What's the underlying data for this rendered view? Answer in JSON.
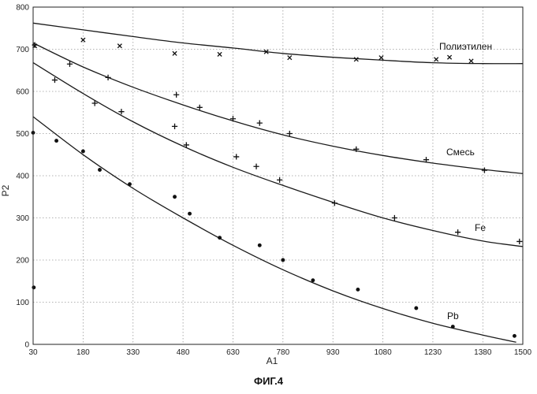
{
  "caption": "ФИГ.4",
  "chart_data": {
    "type": "scatter",
    "xlabel": "A1",
    "ylabel": "P2",
    "xlim": [
      30,
      1500
    ],
    "ylim": [
      0,
      800
    ],
    "xticks": [
      30,
      180,
      330,
      480,
      630,
      780,
      930,
      1080,
      1230,
      1380,
      1500
    ],
    "yticks": [
      0,
      100,
      200,
      300,
      400,
      500,
      600,
      700,
      800
    ],
    "xtick_labels": [
      "30",
      "180",
      "330",
      "480",
      "630",
      "780",
      "930",
      "1080",
      "1230",
      "1380",
      "1500"
    ],
    "ytick_labels": [
      "0",
      "100",
      "200",
      "300",
      "400",
      "500",
      "600",
      "700",
      "800"
    ],
    "grid": true,
    "series": [
      {
        "name": "Полиэтилен",
        "marker": "x",
        "fit": [
          [
            30,
            762
          ],
          [
            180,
            746
          ],
          [
            330,
            730
          ],
          [
            480,
            715
          ],
          [
            630,
            703
          ],
          [
            780,
            690
          ],
          [
            930,
            681
          ],
          [
            1080,
            674
          ],
          [
            1230,
            668
          ],
          [
            1380,
            666
          ],
          [
            1500,
            666
          ]
        ],
        "points": [
          [
            35,
            708
          ],
          [
            180,
            722
          ],
          [
            290,
            708
          ],
          [
            455,
            690
          ],
          [
            590,
            688
          ],
          [
            730,
            694
          ],
          [
            800,
            680
          ],
          [
            1000,
            676
          ],
          [
            1075,
            680
          ],
          [
            1240,
            676
          ],
          [
            1280,
            681
          ],
          [
            1345,
            672
          ]
        ]
      },
      {
        "name": "Смесь",
        "marker": "+",
        "fit": [
          [
            30,
            715
          ],
          [
            180,
            658
          ],
          [
            330,
            610
          ],
          [
            480,
            568
          ],
          [
            630,
            530
          ],
          [
            780,
            497
          ],
          [
            930,
            470
          ],
          [
            1080,
            448
          ],
          [
            1230,
            430
          ],
          [
            1380,
            415
          ],
          [
            1500,
            405
          ]
        ],
        "points": [
          [
            35,
            710
          ],
          [
            140,
            665
          ],
          [
            255,
            633
          ],
          [
            460,
            592
          ],
          [
            530,
            562
          ],
          [
            630,
            535
          ],
          [
            710,
            525
          ],
          [
            800,
            500
          ],
          [
            1000,
            463
          ],
          [
            1210,
            438
          ],
          [
            1385,
            413
          ]
        ]
      },
      {
        "name": "Fe",
        "marker": "+",
        "fit": [
          [
            30,
            668
          ],
          [
            180,
            595
          ],
          [
            330,
            528
          ],
          [
            480,
            470
          ],
          [
            630,
            420
          ],
          [
            780,
            377
          ],
          [
            930,
            337
          ],
          [
            1080,
            300
          ],
          [
            1230,
            270
          ],
          [
            1380,
            245
          ],
          [
            1500,
            232
          ]
        ],
        "points": [
          [
            95,
            627
          ],
          [
            215,
            572
          ],
          [
            295,
            552
          ],
          [
            455,
            517
          ],
          [
            490,
            473
          ],
          [
            640,
            445
          ],
          [
            700,
            422
          ],
          [
            770,
            390
          ],
          [
            935,
            335
          ],
          [
            1115,
            300
          ],
          [
            1305,
            266
          ],
          [
            1490,
            244
          ]
        ]
      },
      {
        "name": "Pb",
        "marker": "dot",
        "fit": [
          [
            30,
            540
          ],
          [
            180,
            450
          ],
          [
            330,
            370
          ],
          [
            480,
            300
          ],
          [
            630,
            235
          ],
          [
            780,
            177
          ],
          [
            930,
            127
          ],
          [
            1080,
            85
          ],
          [
            1230,
            50
          ],
          [
            1380,
            22
          ],
          [
            1480,
            5
          ]
        ],
        "points": [
          [
            30,
            502
          ],
          [
            100,
            483
          ],
          [
            180,
            458
          ],
          [
            230,
            414
          ],
          [
            320,
            380
          ],
          [
            455,
            350
          ],
          [
            500,
            310
          ],
          [
            590,
            253
          ],
          [
            710,
            235
          ],
          [
            780,
            200
          ],
          [
            870,
            152
          ],
          [
            1005,
            130
          ],
          [
            1180,
            86
          ],
          [
            1290,
            42
          ],
          [
            1475,
            20
          ],
          [
            32,
            135
          ]
        ]
      }
    ]
  }
}
